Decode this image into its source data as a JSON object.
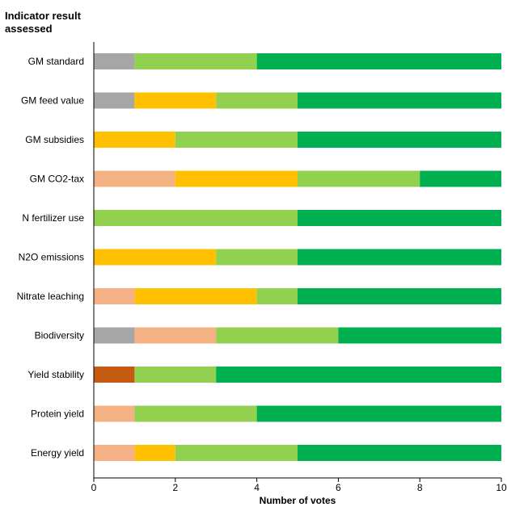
{
  "chart_data": {
    "type": "bar",
    "orientation": "horizontal",
    "stacked": true,
    "title": "Indicator result assessed",
    "xlabel": "Number of votes",
    "ylabel": "",
    "xlim": [
      0,
      10
    ],
    "x_ticks": [
      0,
      2,
      4,
      6,
      8,
      10
    ],
    "grid": false,
    "legend": "none",
    "categories": [
      "GM standard",
      "GM feed value",
      "GM subsidies",
      "GM CO2-tax",
      "N fertilizer use",
      "N2O emissions",
      "Nitrate leaching",
      "Biodiversity",
      "Yield stability",
      "Protein yield",
      "Energy yield"
    ],
    "series": [
      {
        "color": "#A6A6A6",
        "values": [
          1,
          1,
          0,
          0,
          0,
          0,
          0,
          1,
          0,
          0,
          0
        ]
      },
      {
        "color": "#C55A11",
        "values": [
          0,
          0,
          0,
          0,
          0,
          0,
          0,
          0,
          1,
          0,
          0
        ]
      },
      {
        "color": "#F4B183",
        "values": [
          0,
          0,
          0,
          2,
          0,
          0,
          1,
          2,
          0,
          1,
          1
        ]
      },
      {
        "color": "#FFC000",
        "values": [
          0,
          2,
          2,
          3,
          0,
          3,
          3,
          0,
          0,
          0,
          1
        ]
      },
      {
        "color": "#92D050",
        "values": [
          3,
          2,
          3,
          3,
          5,
          2,
          1,
          3,
          2,
          3,
          3
        ]
      },
      {
        "color": "#00B050",
        "values": [
          6,
          5,
          5,
          2,
          5,
          5,
          5,
          4,
          7,
          6,
          5
        ]
      }
    ]
  }
}
